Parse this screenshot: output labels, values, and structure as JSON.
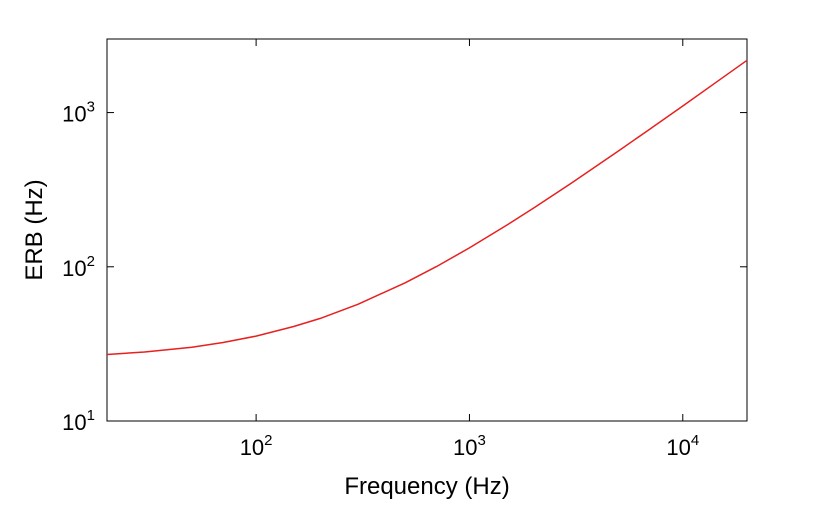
{
  "chart_data": {
    "type": "line",
    "title": "",
    "xlabel": "Frequency (Hz)",
    "ylabel": "ERB (Hz)",
    "xscale": "log",
    "yscale": "log",
    "xlim": [
      20,
      20000
    ],
    "ylim": [
      10,
      3000
    ],
    "x_ticks": [
      {
        "value": 100,
        "base": "10",
        "exp": "2"
      },
      {
        "value": 1000,
        "base": "10",
        "exp": "3"
      },
      {
        "value": 10000,
        "base": "10",
        "exp": "4"
      }
    ],
    "y_ticks": [
      {
        "value": 10,
        "base": "10",
        "exp": "1"
      },
      {
        "value": 100,
        "base": "10",
        "exp": "2"
      },
      {
        "value": 1000,
        "base": "10",
        "exp": "3"
      }
    ],
    "grid": false,
    "series": [
      {
        "color": "#e8201f",
        "x": [
          20,
          30,
          50,
          70,
          100,
          150,
          200,
          300,
          500,
          700,
          1000,
          1500,
          2000,
          3000,
          5000,
          7000,
          10000,
          15000,
          20000
        ],
        "y": [
          27,
          28,
          30.1,
          32.3,
          35.5,
          41,
          46.3,
          57.1,
          78.7,
          100.3,
          132.6,
          186.6,
          240.5,
          348.4,
          564.3,
          780.2,
          1104,
          1644,
          2184
        ]
      }
    ]
  }
}
